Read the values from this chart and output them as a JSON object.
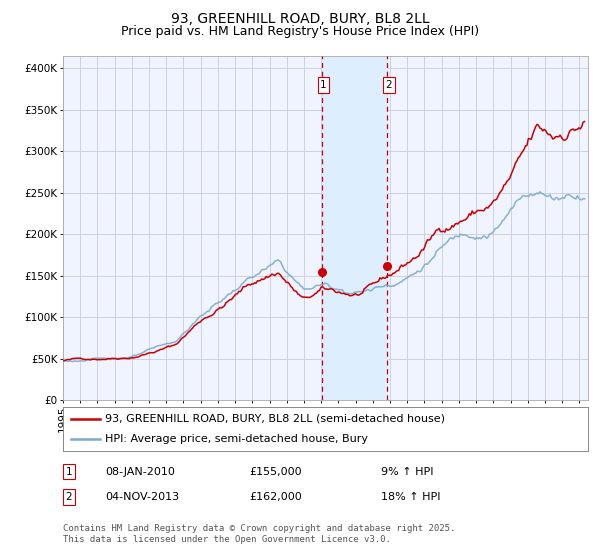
{
  "title": "93, GREENHILL ROAD, BURY, BL8 2LL",
  "subtitle": "Price paid vs. HM Land Registry's House Price Index (HPI)",
  "ylabel_ticks": [
    "£0",
    "£50K",
    "£100K",
    "£150K",
    "£200K",
    "£250K",
    "£300K",
    "£350K",
    "£400K"
  ],
  "ytick_vals": [
    0,
    50000,
    100000,
    150000,
    200000,
    250000,
    300000,
    350000,
    400000
  ],
  "ylim": [
    0,
    415000
  ],
  "xlim_start": 1995.0,
  "xlim_end": 2025.5,
  "line1_color": "#cc0000",
  "line2_color": "#7aabcc",
  "marker_color": "#cc0000",
  "vline1_x": 2010.03,
  "vline2_x": 2013.84,
  "shade_color": "#ddeeff",
  "vline_color": "#cc0000",
  "marker1_x": 2010.03,
  "marker1_y": 155000,
  "marker2_x": 2013.84,
  "marker2_y": 162000,
  "legend1": "93, GREENHILL ROAD, BURY, BL8 2LL (semi-detached house)",
  "legend2": "HPI: Average price, semi-detached house, Bury",
  "label1_num": "1",
  "label2_num": "2",
  "sale1_date": "08-JAN-2010",
  "sale1_price": "£155,000",
  "sale1_hpi": "9% ↑ HPI",
  "sale2_date": "04-NOV-2013",
  "sale2_price": "£162,000",
  "sale2_hpi": "18% ↑ HPI",
  "footnote": "Contains HM Land Registry data © Crown copyright and database right 2025.\nThis data is licensed under the Open Government Licence v3.0.",
  "bg_color": "#f0f4ff",
  "grid_color": "#c8cce0",
  "title_fontsize": 10,
  "subtitle_fontsize": 9,
  "tick_fontsize": 7.5,
  "legend_fontsize": 8,
  "table_fontsize": 8,
  "footnote_fontsize": 6.5
}
